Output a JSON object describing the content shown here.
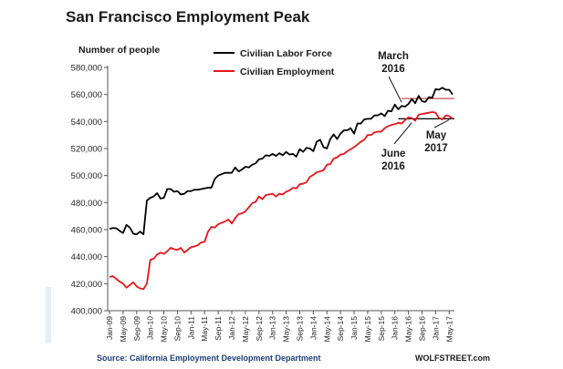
{
  "chart_data": {
    "type": "line",
    "title": "San Francisco Employment Peak",
    "ylabel": "Number of people",
    "ylim": [
      400000,
      580000
    ],
    "yticks": [
      400000,
      420000,
      440000,
      460000,
      480000,
      500000,
      520000,
      540000,
      560000,
      580000
    ],
    "ytick_labels": [
      "400,000",
      "420,000",
      "440,000",
      "460,000",
      "480,000",
      "500,000",
      "520,000",
      "540,000",
      "560,000",
      "580,000"
    ],
    "x_start": "Jan-09",
    "x_count": 102,
    "xtick_labels": [
      "Jan-09",
      "May-09",
      "Sep-09",
      "Jan-10",
      "May-10",
      "Sep-10",
      "Jan-11",
      "May-11",
      "Sep-11",
      "Jan-12",
      "May-12",
      "Sep-12",
      "Jan-13",
      "May-13",
      "Sep-13",
      "Jan-14",
      "May-14",
      "Sep-14",
      "Jan-15",
      "May-15",
      "Sep-15",
      "Jan-16",
      "May-16",
      "Sep-16",
      "Jan-17",
      "May-17"
    ],
    "legend": "top-left",
    "series": [
      {
        "name": "Civilian Labor Force",
        "color": "#000000",
        "values": [
          460500,
          461200,
          461000,
          459000,
          457500,
          463500,
          461500,
          457000,
          456500,
          458500,
          456500,
          481500,
          483500,
          484500,
          487000,
          483000,
          483500,
          490000,
          490000,
          488000,
          488500,
          486000,
          486500,
          488500,
          488500,
          489500,
          489500,
          490000,
          490500,
          491000,
          491000,
          497500,
          500000,
          501000,
          502000,
          502000,
          502000,
          506000,
          503000,
          504500,
          506500,
          506000,
          508000,
          509000,
          512000,
          512500,
          515000,
          514500,
          516000,
          514500,
          516500,
          515000,
          517500,
          515500,
          516000,
          514000,
          519500,
          517500,
          520500,
          520000,
          518000,
          525000,
          526500,
          521000,
          520000,
          527000,
          530500,
          527000,
          531000,
          533500,
          533500,
          535000,
          531000,
          538500,
          538500,
          541500,
          542000,
          542000,
          544500,
          544500,
          546000,
          544000,
          548000,
          547500,
          552500,
          549000,
          551500,
          551000,
          553000,
          556500,
          553500,
          559000,
          555000,
          554500,
          558000,
          557500,
          564000,
          563500,
          565000,
          563500,
          563500,
          560000
        ]
      },
      {
        "name": "Civilian Employment",
        "color": "#e8141a",
        "values": [
          425000,
          425500,
          423500,
          421500,
          420000,
          417000,
          419000,
          421000,
          418000,
          416500,
          416000,
          420000,
          437500,
          438500,
          441500,
          443000,
          442000,
          444000,
          446500,
          445500,
          445000,
          446500,
          443000,
          445000,
          447000,
          447500,
          448500,
          450500,
          451000,
          458500,
          462000,
          461500,
          464000,
          465000,
          466000,
          467500,
          464500,
          468500,
          471500,
          472000,
          473500,
          476500,
          479500,
          480500,
          484500,
          482500,
          485500,
          486000,
          486500,
          484500,
          486500,
          486000,
          488000,
          489000,
          491000,
          490500,
          493500,
          494000,
          495000,
          499000,
          500500,
          502500,
          503000,
          504000,
          508000,
          508500,
          512500,
          513500,
          515500,
          516000,
          518000,
          519500,
          521000,
          523000,
          525000,
          526500,
          530000,
          530000,
          532000,
          532500,
          532500,
          535000,
          536500,
          537500,
          538000,
          539000,
          538500,
          541000,
          543000,
          542500,
          540500,
          545000,
          545500,
          546000,
          546500,
          547000,
          546500,
          542500,
          541500,
          544500,
          544000,
          542000
        ]
      }
    ],
    "reference_lines": [
      {
        "value": 557000,
        "color": "#c8505a",
        "from_index": 86
      },
      {
        "value": 542000,
        "color": "#000000",
        "from_index": 85
      }
    ],
    "annotations": [
      {
        "text_lines": [
          "March",
          "2016"
        ]
      },
      {
        "text_lines": [
          "June",
          "2016"
        ]
      },
      {
        "text_lines": [
          "May",
          "2017"
        ]
      }
    ],
    "source": "Source: California Employment Development Department",
    "credit": "WOLFSTREET.com"
  }
}
